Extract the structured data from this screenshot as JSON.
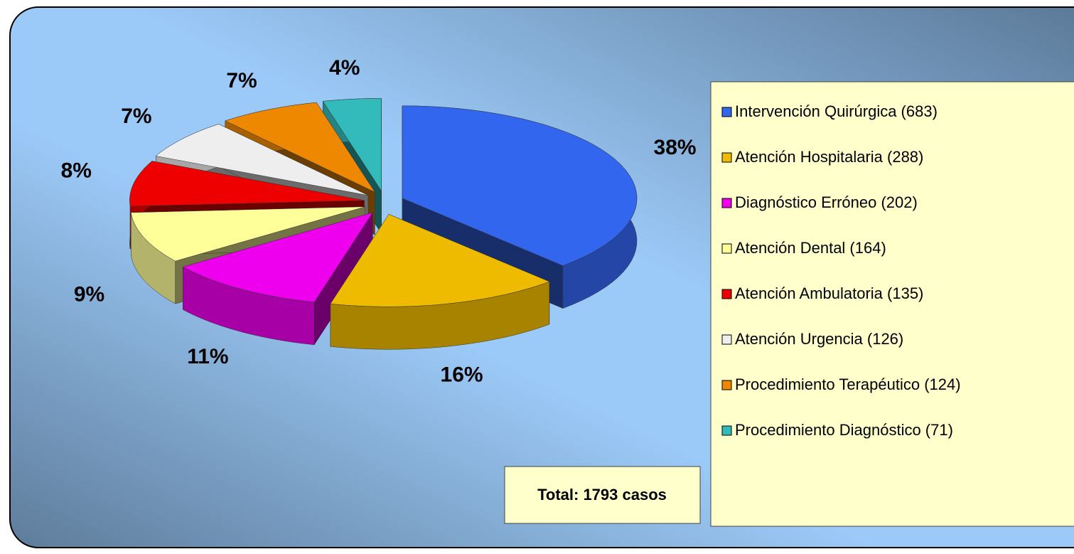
{
  "chart_data": {
    "type": "pie",
    "categories": [
      "Intervención Quirúrgica (683)",
      "Atención Hospitalaria (288)",
      "Diagnóstico Erróneo (202)",
      "Atención Dental (164)",
      "Atención Ambulatoria (135)",
      "Atención Urgencia (126)",
      "Procedimiento Terapéutico (124)",
      "Procedimiento Diagnóstico (71)"
    ],
    "values": [
      38,
      16,
      11,
      9,
      8,
      7,
      7,
      4
    ],
    "value_labels": [
      "38%",
      "16%",
      "11%",
      "9%",
      "8%",
      "7%",
      "7%",
      "4%"
    ],
    "colors": [
      "#3366ee",
      "#eebb00",
      "#ee00ee",
      "#ffff99",
      "#ee0000",
      "#eeeeee",
      "#ee8800",
      "#33bbbb"
    ],
    "legend_position": "right",
    "annotation": "Total: 1793 casos"
  }
}
